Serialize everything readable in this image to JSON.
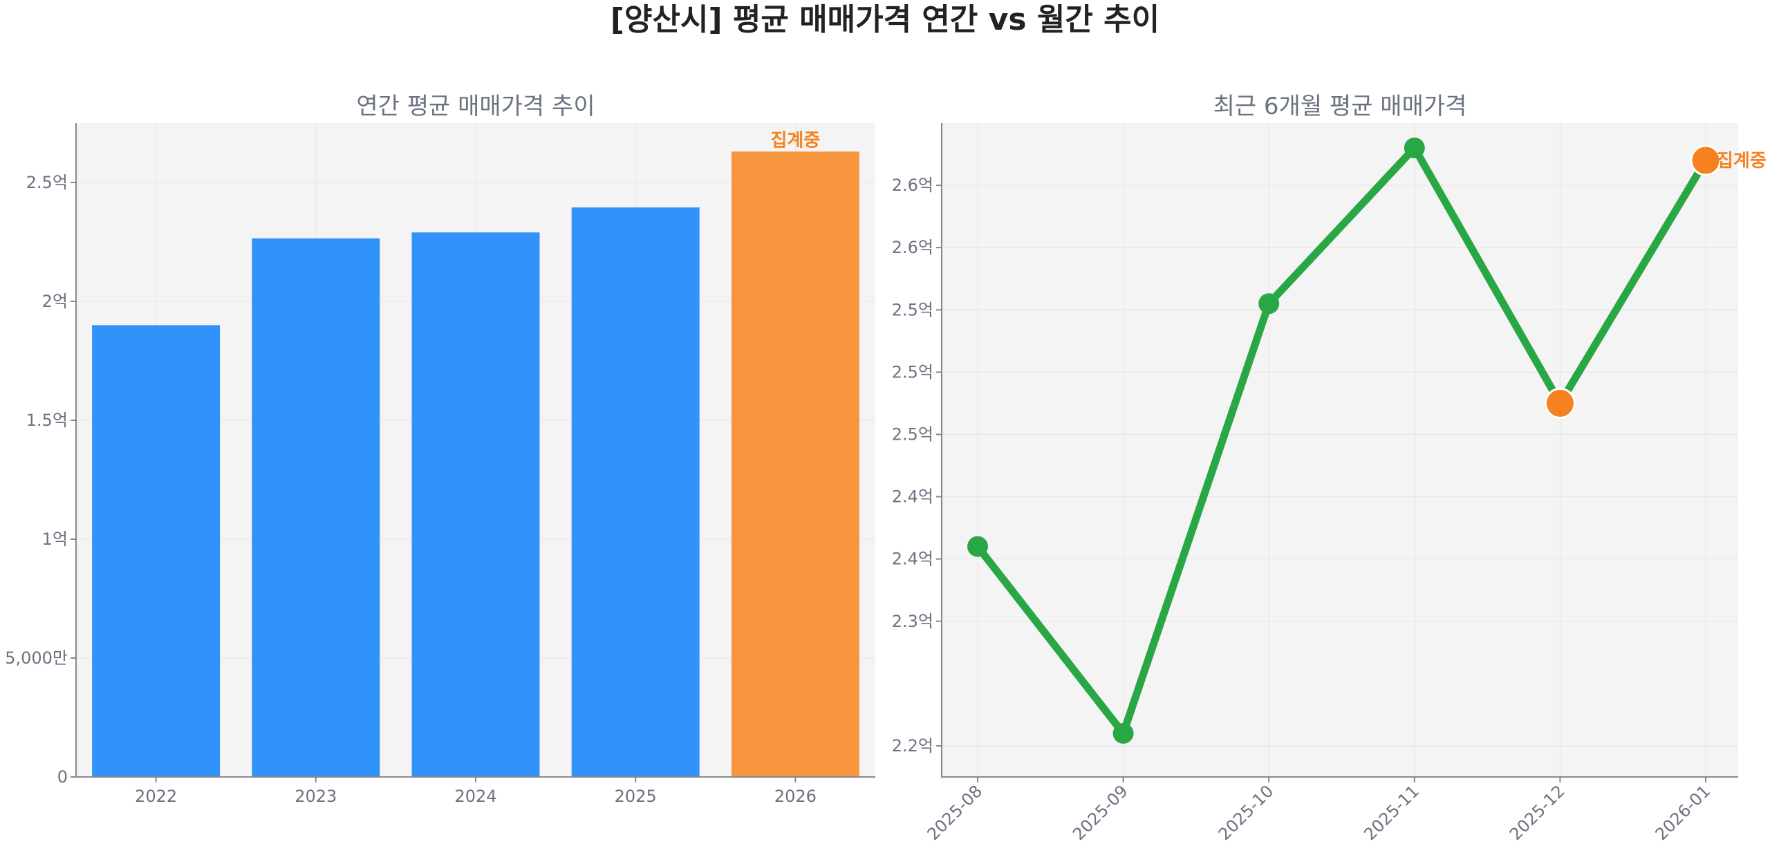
{
  "title": "[양산시] 평균 매매가격 연간 vs 월간 추이",
  "colors": {
    "bar": "#3192fa",
    "bar_highlight": "#f7963e",
    "line": "#2aa745",
    "highlight": "#f5821f",
    "panel_bg": "#f4f4f4"
  },
  "chart_data": [
    {
      "type": "bar",
      "title": "연간 평균 매매가격 추이",
      "categories": [
        "2022",
        "2023",
        "2024",
        "2025",
        "2026"
      ],
      "values": [
        190000000,
        226500000,
        229000000,
        239500000,
        263000000
      ],
      "highlight_index": 4,
      "annotation": "집계중",
      "ylim": [
        0,
        275000000
      ],
      "yticks": [
        {
          "value": 0,
          "label": "0"
        },
        {
          "value": 50000000,
          "label": "5,000만"
        },
        {
          "value": 100000000,
          "label": "1억"
        },
        {
          "value": 150000000,
          "label": "1.5억"
        },
        {
          "value": 200000000,
          "label": "2억"
        },
        {
          "value": 250000000,
          "label": "2.5억"
        }
      ],
      "grid": true,
      "xlabel": "",
      "ylabel": ""
    },
    {
      "type": "line",
      "title": "최근 6개월 평균 매매가격",
      "categories": [
        "2025-08",
        "2025-09",
        "2025-10",
        "2025-11",
        "2025-12",
        "2026-01"
      ],
      "values": [
        236000000,
        221000000,
        255500000,
        268000000,
        247500000,
        267000000
      ],
      "highlight_indices": [
        4,
        5
      ],
      "annotation": "집계중",
      "annotation_index": 5,
      "ylim": [
        217500000,
        270000000
      ],
      "yticks": [
        {
          "value": 220000000,
          "label": "2.2억"
        },
        {
          "value": 230000000,
          "label": "2.3억"
        },
        {
          "value": 235000000,
          "label": "2.4억"
        },
        {
          "value": 240000000,
          "label": "2.4억"
        },
        {
          "value": 245000000,
          "label": "2.5억"
        },
        {
          "value": 250000000,
          "label": "2.5억"
        },
        {
          "value": 255000000,
          "label": "2.5억"
        },
        {
          "value": 260000000,
          "label": "2.6억"
        },
        {
          "value": 265000000,
          "label": "2.6억"
        }
      ],
      "grid": true,
      "xlabel": "",
      "ylabel": ""
    }
  ]
}
